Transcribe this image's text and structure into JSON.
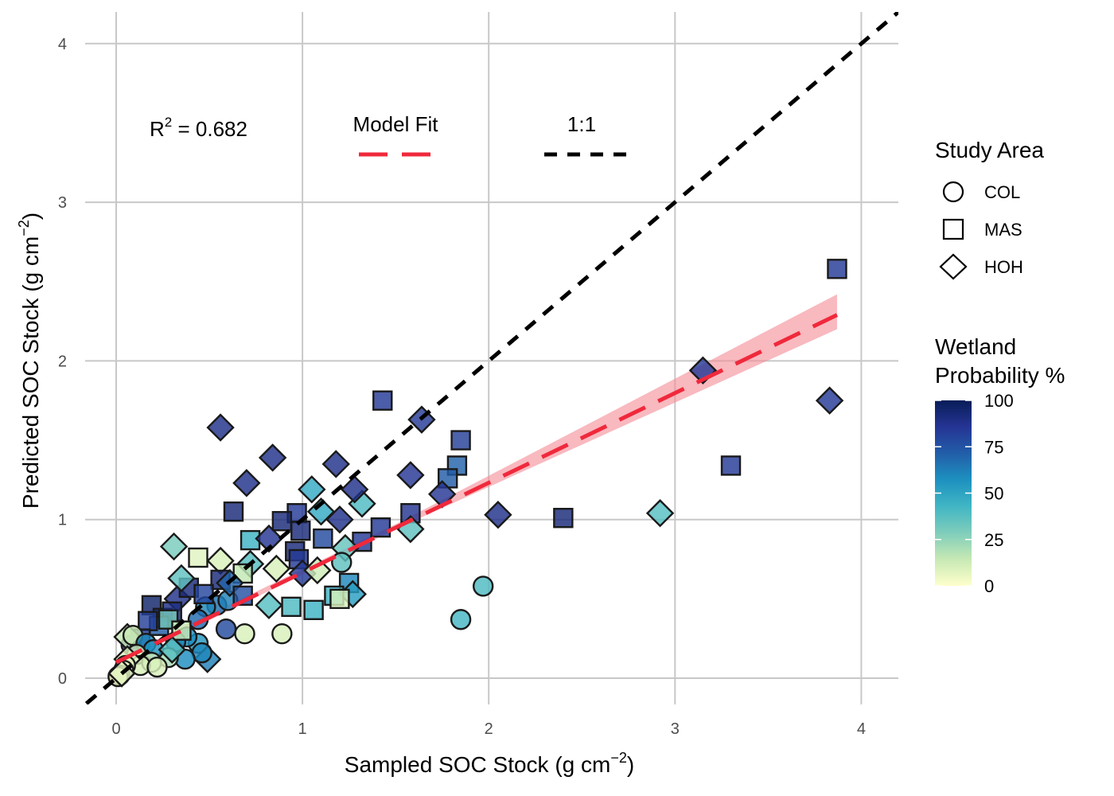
{
  "chart_data": {
    "type": "scatter",
    "xlabel": "Sampled SOC Stock (g cm",
    "xlabel_sup": "−2",
    "xlabel_end": ")",
    "ylabel": "Predicted SOC Stock (g cm",
    "ylabel_sup": "−2",
    "ylabel_end": ")",
    "xlim": [
      -0.16,
      4.2
    ],
    "ylim": [
      -0.16,
      4.2
    ],
    "x_ticks": [
      0,
      1,
      2,
      3,
      4
    ],
    "y_ticks": [
      0,
      1,
      2,
      3,
      4
    ],
    "x_tick_labels": [
      "0",
      "1",
      "2",
      "3",
      "4"
    ],
    "y_tick_labels": [
      "0",
      "1",
      "2",
      "3",
      "4"
    ],
    "grid": true,
    "annotations": {
      "r2_prefix": "R",
      "r2_sup": "2",
      "r2_value": " = 0.682",
      "model_fit_label": "Model Fit",
      "one_to_one_label": "1:1"
    },
    "fit_line": {
      "x": [
        0,
        3.87
      ],
      "y": [
        0.1,
        2.29
      ],
      "color": "#f0293c"
    },
    "fit_ci": {
      "x": [
        0,
        1.5,
        3.87
      ],
      "lower": [
        0.08,
        0.94,
        2.2
      ],
      "upper": [
        0.12,
        0.97,
        2.42
      ]
    },
    "identity_line": {
      "x": [
        -0.16,
        4.2
      ],
      "y": [
        -0.16,
        4.2
      ],
      "color": "#000000"
    },
    "shape_legend": {
      "title": "Study Area",
      "items": [
        {
          "label": "COL",
          "shape": "circle"
        },
        {
          "label": "MAS",
          "shape": "square"
        },
        {
          "label": "HOH",
          "shape": "diamond"
        }
      ]
    },
    "color_legend": {
      "title_line1": "Wetland",
      "title_line2": "Probability %",
      "min": 0,
      "max": 100,
      "ticks": [
        0,
        25,
        50,
        75,
        100
      ],
      "tick_labels": [
        "0",
        "25",
        "50",
        "75",
        "100"
      ],
      "stops": [
        "#ffffcc",
        "#c7e9b4",
        "#7fcdbb",
        "#41b6c4",
        "#1d91c0",
        "#225ea8",
        "#253494",
        "#081d58"
      ]
    },
    "points": [
      {
        "x": 3.87,
        "y": 2.58,
        "shape": "square",
        "wp": 84
      },
      {
        "x": 3.3,
        "y": 1.34,
        "shape": "square",
        "wp": 84
      },
      {
        "x": 3.15,
        "y": 1.94,
        "shape": "diamond",
        "wp": 84
      },
      {
        "x": 3.83,
        "y": 1.75,
        "shape": "diamond",
        "wp": 84
      },
      {
        "x": 2.92,
        "y": 1.04,
        "shape": "diamond",
        "wp": 38
      },
      {
        "x": 2.4,
        "y": 1.01,
        "shape": "square",
        "wp": 92
      },
      {
        "x": 2.05,
        "y": 1.03,
        "shape": "diamond",
        "wp": 88
      },
      {
        "x": 1.97,
        "y": 0.58,
        "shape": "circle",
        "wp": 40
      },
      {
        "x": 1.85,
        "y": 0.37,
        "shape": "circle",
        "wp": 42
      },
      {
        "x": 1.43,
        "y": 1.75,
        "shape": "square",
        "wp": 84
      },
      {
        "x": 1.64,
        "y": 1.63,
        "shape": "diamond",
        "wp": 84
      },
      {
        "x": 1.85,
        "y": 1.5,
        "shape": "square",
        "wp": 82
      },
      {
        "x": 1.83,
        "y": 1.34,
        "shape": "square",
        "wp": 70
      },
      {
        "x": 1.78,
        "y": 1.26,
        "shape": "square",
        "wp": 72
      },
      {
        "x": 1.58,
        "y": 1.28,
        "shape": "diamond",
        "wp": 85
      },
      {
        "x": 1.75,
        "y": 1.16,
        "shape": "diamond",
        "wp": 85
      },
      {
        "x": 1.58,
        "y": 1.04,
        "shape": "square",
        "wp": 86
      },
      {
        "x": 1.58,
        "y": 0.94,
        "shape": "diamond",
        "wp": 36
      },
      {
        "x": 1.42,
        "y": 0.95,
        "shape": "square",
        "wp": 84
      },
      {
        "x": 1.32,
        "y": 0.86,
        "shape": "square",
        "wp": 84
      },
      {
        "x": 1.32,
        "y": 1.1,
        "shape": "diamond",
        "wp": 40
      },
      {
        "x": 1.28,
        "y": 1.19,
        "shape": "diamond",
        "wp": 88
      },
      {
        "x": 1.18,
        "y": 1.35,
        "shape": "diamond",
        "wp": 88
      },
      {
        "x": 1.05,
        "y": 1.19,
        "shape": "diamond",
        "wp": 48
      },
      {
        "x": 1.2,
        "y": 1.0,
        "shape": "diamond",
        "wp": 88
      },
      {
        "x": 0.56,
        "y": 1.58,
        "shape": "diamond",
        "wp": 88
      },
      {
        "x": 0.84,
        "y": 1.39,
        "shape": "diamond",
        "wp": 88
      },
      {
        "x": 0.7,
        "y": 1.23,
        "shape": "diamond",
        "wp": 88
      },
      {
        "x": 0.63,
        "y": 1.05,
        "shape": "square",
        "wp": 92
      },
      {
        "x": 0.97,
        "y": 1.04,
        "shape": "square",
        "wp": 84
      },
      {
        "x": 0.89,
        "y": 0.99,
        "shape": "square",
        "wp": 92
      },
      {
        "x": 0.99,
        "y": 0.93,
        "shape": "square",
        "wp": 92
      },
      {
        "x": 1.1,
        "y": 1.05,
        "shape": "diamond",
        "wp": 48
      },
      {
        "x": 1.11,
        "y": 0.88,
        "shape": "square",
        "wp": 78
      },
      {
        "x": 0.72,
        "y": 0.87,
        "shape": "square",
        "wp": 44
      },
      {
        "x": 0.82,
        "y": 0.88,
        "shape": "diamond",
        "wp": 86
      },
      {
        "x": 0.96,
        "y": 0.8,
        "shape": "square",
        "wp": 92
      },
      {
        "x": 1.23,
        "y": 0.82,
        "shape": "diamond",
        "wp": 34
      },
      {
        "x": 1.21,
        "y": 0.73,
        "shape": "circle",
        "wp": 36
      },
      {
        "x": 0.98,
        "y": 0.75,
        "shape": "square",
        "wp": 84
      },
      {
        "x": 0.31,
        "y": 0.83,
        "shape": "diamond",
        "wp": 30
      },
      {
        "x": 0.44,
        "y": 0.76,
        "shape": "square",
        "wp": 8
      },
      {
        "x": 0.56,
        "y": 0.74,
        "shape": "diamond",
        "wp": 10
      },
      {
        "x": 0.72,
        "y": 0.72,
        "shape": "diamond",
        "wp": 38
      },
      {
        "x": 0.68,
        "y": 0.66,
        "shape": "square",
        "wp": 15
      },
      {
        "x": 0.86,
        "y": 0.69,
        "shape": "diamond",
        "wp": 10
      },
      {
        "x": 1.0,
        "y": 0.66,
        "shape": "diamond",
        "wp": 84
      },
      {
        "x": 1.08,
        "y": 0.68,
        "shape": "diamond",
        "wp": 12
      },
      {
        "x": 1.25,
        "y": 0.6,
        "shape": "square",
        "wp": 60
      },
      {
        "x": 1.27,
        "y": 0.53,
        "shape": "diamond",
        "wp": 52
      },
      {
        "x": 1.17,
        "y": 0.52,
        "shape": "square",
        "wp": 44
      },
      {
        "x": 1.2,
        "y": 0.5,
        "shape": "square",
        "wp": 10
      },
      {
        "x": 1.06,
        "y": 0.43,
        "shape": "square",
        "wp": 44
      },
      {
        "x": 0.94,
        "y": 0.45,
        "shape": "square",
        "wp": 40
      },
      {
        "x": 0.82,
        "y": 0.46,
        "shape": "diamond",
        "wp": 38
      },
      {
        "x": 0.89,
        "y": 0.28,
        "shape": "circle",
        "wp": 10
      },
      {
        "x": 0.69,
        "y": 0.28,
        "shape": "circle",
        "wp": 10
      },
      {
        "x": 0.59,
        "y": 0.31,
        "shape": "circle",
        "wp": 78
      },
      {
        "x": 0.54,
        "y": 0.46,
        "shape": "circle",
        "wp": 66
      },
      {
        "x": 0.6,
        "y": 0.49,
        "shape": "circle",
        "wp": 62
      },
      {
        "x": 0.48,
        "y": 0.45,
        "shape": "circle",
        "wp": 60
      },
      {
        "x": 0.44,
        "y": 0.37,
        "shape": "circle",
        "wp": 68
      },
      {
        "x": 0.44,
        "y": 0.22,
        "shape": "circle",
        "wp": 54
      },
      {
        "x": 0.38,
        "y": 0.26,
        "shape": "circle",
        "wp": 58
      },
      {
        "x": 0.32,
        "y": 0.23,
        "shape": "circle",
        "wp": 60
      },
      {
        "x": 0.49,
        "y": 0.12,
        "shape": "diamond",
        "wp": 62
      },
      {
        "x": 0.46,
        "y": 0.16,
        "shape": "circle",
        "wp": 60
      },
      {
        "x": 0.37,
        "y": 0.12,
        "shape": "circle",
        "wp": 58
      },
      {
        "x": 0.28,
        "y": 0.13,
        "shape": "circle",
        "wp": 20
      },
      {
        "x": 0.19,
        "y": 0.46,
        "shape": "square",
        "wp": 96
      },
      {
        "x": 0.25,
        "y": 0.38,
        "shape": "square",
        "wp": 92
      },
      {
        "x": 0.33,
        "y": 0.5,
        "shape": "diamond",
        "wp": 88
      },
      {
        "x": 0.39,
        "y": 0.57,
        "shape": "square",
        "wp": 92
      },
      {
        "x": 0.35,
        "y": 0.63,
        "shape": "diamond",
        "wp": 36
      },
      {
        "x": 0.56,
        "y": 0.62,
        "shape": "square",
        "wp": 92
      },
      {
        "x": 0.61,
        "y": 0.6,
        "shape": "diamond",
        "wp": 70
      },
      {
        "x": 0.68,
        "y": 0.52,
        "shape": "square",
        "wp": 76
      },
      {
        "x": 0.47,
        "y": 0.53,
        "shape": "square",
        "wp": 80
      },
      {
        "x": 0.3,
        "y": 0.42,
        "shape": "square",
        "wp": 90
      },
      {
        "x": 0.23,
        "y": 0.33,
        "shape": "square",
        "wp": 72
      },
      {
        "x": 0.28,
        "y": 0.37,
        "shape": "square",
        "wp": 30
      },
      {
        "x": 0.35,
        "y": 0.3,
        "shape": "square",
        "wp": 14
      },
      {
        "x": 0.17,
        "y": 0.36,
        "shape": "square",
        "wp": 82
      },
      {
        "x": 0.13,
        "y": 0.25,
        "shape": "square",
        "wp": 82
      },
      {
        "x": 0.08,
        "y": 0.21,
        "shape": "circle",
        "wp": 86
      },
      {
        "x": 0.06,
        "y": 0.26,
        "shape": "diamond",
        "wp": 14
      },
      {
        "x": 0.09,
        "y": 0.27,
        "shape": "circle",
        "wp": 14
      },
      {
        "x": 0.16,
        "y": 0.22,
        "shape": "circle",
        "wp": 60
      },
      {
        "x": 0.2,
        "y": 0.18,
        "shape": "circle",
        "wp": 56
      },
      {
        "x": 0.11,
        "y": 0.15,
        "shape": "circle",
        "wp": 12
      },
      {
        "x": 0.19,
        "y": 0.1,
        "shape": "circle",
        "wp": 12
      },
      {
        "x": 0.13,
        "y": 0.08,
        "shape": "circle",
        "wp": 10
      },
      {
        "x": 0.06,
        "y": 0.12,
        "shape": "diamond",
        "wp": 8
      },
      {
        "x": 0.05,
        "y": 0.08,
        "shape": "circle",
        "wp": 6
      },
      {
        "x": 0.04,
        "y": 0.05,
        "shape": "circle",
        "wp": 5
      },
      {
        "x": 0.02,
        "y": 0.02,
        "shape": "circle",
        "wp": 4
      },
      {
        "x": 0.01,
        "y": 0.01,
        "shape": "circle",
        "wp": 3
      },
      {
        "x": 0.03,
        "y": 0.03,
        "shape": "diamond",
        "wp": 8
      },
      {
        "x": 0.22,
        "y": 0.07,
        "shape": "circle",
        "wp": 10
      },
      {
        "x": 0.3,
        "y": 0.18,
        "shape": "diamond",
        "wp": 38
      }
    ]
  }
}
